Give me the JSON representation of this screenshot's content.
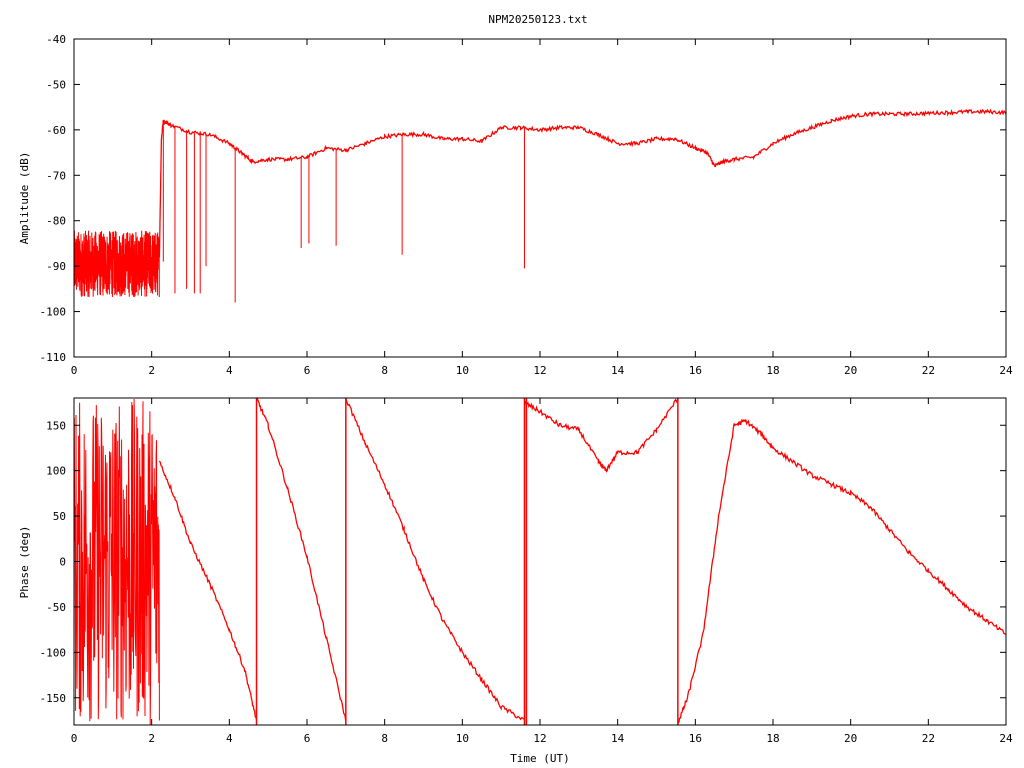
{
  "title": "NPM20250123.txt",
  "chart_data": [
    {
      "type": "line",
      "ylabel": "Amplitude (dB)",
      "xlabel": "",
      "xlim": [
        0,
        24
      ],
      "ylim": [
        -110,
        -40
      ],
      "xticks": [
        0,
        2,
        4,
        6,
        8,
        10,
        12,
        14,
        16,
        18,
        20,
        22,
        24
      ],
      "yticks": [
        -40,
        -50,
        -60,
        -70,
        -80,
        -90,
        -100,
        -110
      ],
      "grid": false,
      "color": "#ff0000",
      "series": [
        {
          "x": [
            0,
            0.25,
            0.5,
            0.75,
            1.0,
            1.25,
            1.5,
            1.75,
            2.0,
            2.2,
            2.25,
            2.3,
            2.5,
            3.0,
            3.5,
            4.0,
            4.3,
            4.6,
            5.0,
            5.5,
            6.0,
            6.5,
            7.0,
            7.5,
            8.0,
            8.5,
            9.0,
            9.5,
            10.0,
            10.5,
            11.0,
            11.5,
            12.0,
            12.5,
            13.0,
            13.5,
            14.0,
            14.5,
            15.0,
            15.5,
            16.0,
            16.3,
            16.5,
            16.7,
            17.0,
            17.5,
            18.0,
            18.5,
            19.0,
            19.5,
            20.0,
            20.5,
            21.0,
            21.5,
            22.0,
            22.5,
            23.0,
            23.5,
            24.0
          ],
          "y": [
            -90,
            -89,
            -90,
            -89,
            -90,
            -89,
            -90,
            -89,
            -89,
            -88,
            -62,
            -58,
            -59,
            -60.5,
            -61,
            -63,
            -65,
            -67,
            -66.5,
            -66.5,
            -66,
            -64,
            -64.5,
            -63,
            -61.5,
            -61,
            -61,
            -62,
            -62,
            -62.5,
            -59.5,
            -59.5,
            -60,
            -59.5,
            -59.5,
            -61,
            -63,
            -63,
            -62,
            -62,
            -64,
            -65,
            -68,
            -67,
            -66.5,
            -66,
            -63,
            -61,
            -59.5,
            -58,
            -57,
            -56.5,
            -56.5,
            -56.5,
            -56.3,
            -56.2,
            -56,
            -56,
            -56.2
          ],
          "noise_range": [
            0,
            2.2
          ],
          "noise_band": [
            -100,
            -79
          ],
          "spikes": [
            {
              "x": 2.3,
              "y": -89
            },
            {
              "x": 2.6,
              "y": -96
            },
            {
              "x": 2.9,
              "y": -95
            },
            {
              "x": 3.1,
              "y": -96
            },
            {
              "x": 3.25,
              "y": -96
            },
            {
              "x": 3.4,
              "y": -90
            },
            {
              "x": 4.15,
              "y": -98
            },
            {
              "x": 5.85,
              "y": -86
            },
            {
              "x": 6.05,
              "y": -85
            },
            {
              "x": 6.75,
              "y": -85.5
            },
            {
              "x": 8.45,
              "y": -87.5
            },
            {
              "x": 11.6,
              "y": -90.5
            }
          ]
        }
      ]
    },
    {
      "type": "line",
      "ylabel": "Phase (deg)",
      "xlabel": "Time (UT)",
      "xlim": [
        0,
        24
      ],
      "ylim": [
        -180,
        180
      ],
      "xticks": [
        0,
        2,
        4,
        6,
        8,
        10,
        12,
        14,
        16,
        18,
        20,
        22,
        24
      ],
      "yticks": [
        150,
        100,
        50,
        0,
        -50,
        -100,
        -150
      ],
      "grid": false,
      "color": "#ff0000",
      "series": [
        {
          "noise_range": [
            0,
            2.2
          ],
          "segments": [
            {
              "x": [
                2.2,
                2.6,
                3.0,
                3.5,
                4.0,
                4.4,
                4.7
              ],
              "y": [
                110,
                70,
                20,
                -25,
                -75,
                -120,
                -175
              ]
            },
            {
              "x": [
                4.7,
                5.0,
                5.5,
                6.0,
                6.5,
                7.0
              ],
              "y": [
                180,
                150,
                80,
                5,
                -85,
                -175
              ]
            },
            {
              "x": [
                7.0,
                7.5,
                8.0,
                8.5,
                9.0,
                9.5,
                10.0,
                10.5,
                11.0,
                11.6
              ],
              "y": [
                180,
                130,
                85,
                35,
                -20,
                -65,
                -100,
                -130,
                -160,
                -175
              ]
            },
            {
              "x": [
                11.6,
                12.0,
                12.5,
                13.0,
                13.5,
                13.7,
                14.0,
                14.5,
                15.0,
                15.55
              ],
              "y": [
                175,
                165,
                150,
                145,
                110,
                100,
                120,
                120,
                145,
                180
              ]
            },
            {
              "x": [
                15.55,
                15.8,
                16.2,
                16.6,
                17.0,
                17.3,
                17.7,
                18.0,
                18.5,
                19.0,
                19.5,
                20.0,
                20.5,
                21.0,
                21.5,
                22.0,
                22.5,
                23.0,
                23.5,
                24.0
              ],
              "y": [
                -178,
                -150,
                -80,
                50,
                150,
                155,
                140,
                125,
                110,
                95,
                85,
                75,
                60,
                35,
                10,
                -10,
                -30,
                -50,
                -65,
                -80
              ]
            }
          ],
          "wraps": [
            4.7,
            7.0,
            11.6,
            11.65,
            15.55
          ]
        }
      ]
    }
  ]
}
